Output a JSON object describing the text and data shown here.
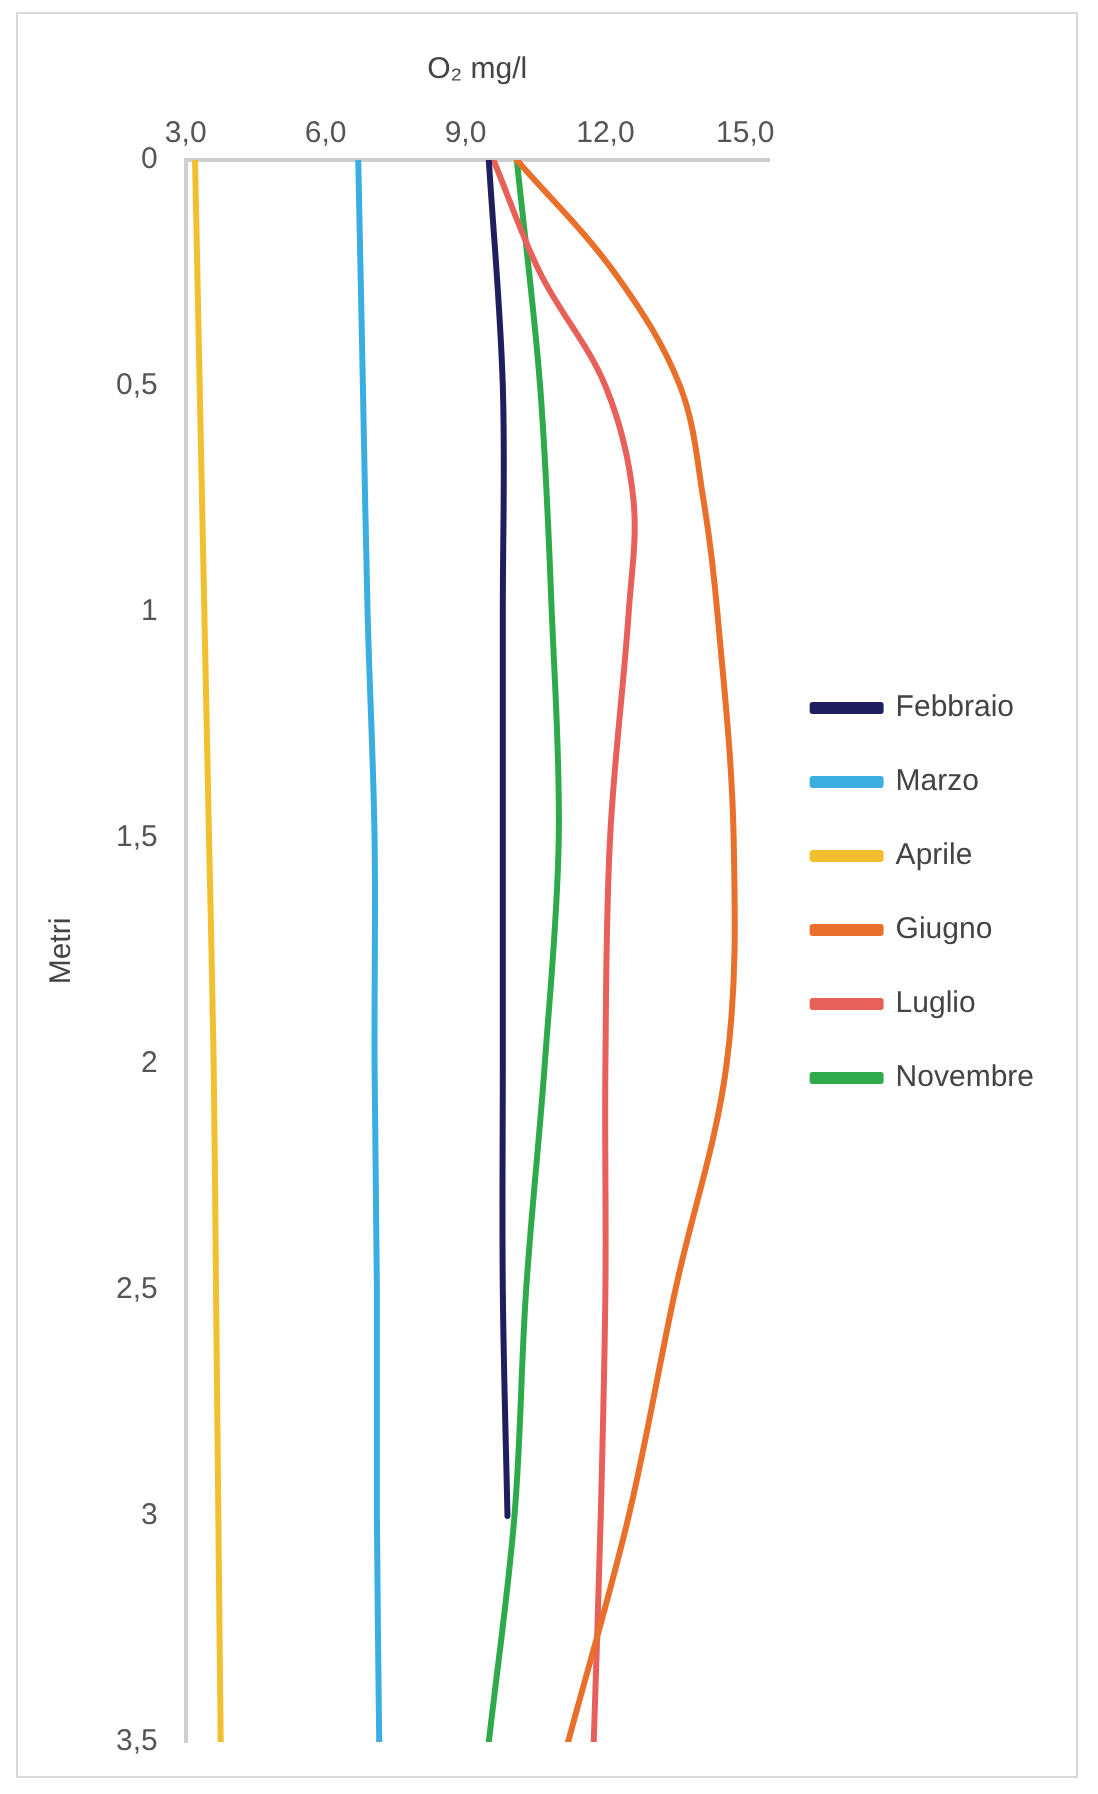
{
  "chart_data": {
    "type": "line",
    "xlabel": "O₂ mg/l",
    "ylabel": "Metri",
    "xlim": [
      3,
      15.5
    ],
    "xticks": [
      {
        "value": 3,
        "label": "3,0"
      },
      {
        "value": 6,
        "label": "6,0"
      },
      {
        "value": 9,
        "label": "9,0"
      },
      {
        "value": 12,
        "label": "12,0"
      },
      {
        "value": 15,
        "label": "15,0"
      }
    ],
    "ylim": [
      3.5,
      0
    ],
    "yticks": [
      0,
      {
        "value": 0.5,
        "label": "0,5"
      },
      1,
      {
        "value": 1.5,
        "label": "1,5"
      },
      2,
      {
        "value": 2.5,
        "label": "2,5"
      },
      3,
      {
        "value": 3.5,
        "label": "3,5"
      }
    ],
    "grid": false,
    "legend": "right",
    "marker": "none",
    "line_style": "solid",
    "series": [
      {
        "name": "Febbraio",
        "color": "#1f1f5f",
        "x": [
          9.5,
          9.8,
          9.8,
          9.8,
          9.8,
          9.8,
          9.9
        ],
        "values": [
          0,
          0.5,
          1,
          1.5,
          2,
          2.5,
          3
        ]
      },
      {
        "name": "Marzo",
        "color": "#3aaee0",
        "x": [
          6.7,
          6.8,
          6.9,
          7.05,
          7.05,
          7.1,
          7.1,
          7.15
        ],
        "values": [
          0,
          0.5,
          1,
          1.5,
          2,
          2.5,
          3,
          3.5
        ]
      },
      {
        "name": "Aprile",
        "color": "#f2c02e",
        "x": [
          3.2,
          3.3,
          3.4,
          3.5,
          3.6,
          3.65,
          3.7,
          3.75
        ],
        "values": [
          0,
          0.5,
          1,
          1.5,
          2,
          2.5,
          3,
          3.5
        ]
      },
      {
        "name": "Giugno",
        "color": "#e8702a",
        "x": [
          10.1,
          12.2,
          13.6,
          14.1,
          14.4,
          14.75,
          14.6,
          13.5,
          12.5,
          11.2
        ],
        "values": [
          0,
          0.25,
          0.5,
          0.75,
          1,
          1.5,
          2,
          2.5,
          3,
          3.5
        ]
      },
      {
        "name": "Luglio",
        "color": "#e8605a",
        "x": [
          9.6,
          10.6,
          12,
          12.6,
          12.5,
          12.1,
          12,
          12,
          11.9,
          11.75
        ],
        "values": [
          0,
          0.25,
          0.5,
          0.75,
          1,
          1.5,
          2,
          2.5,
          3,
          3.5
        ]
      },
      {
        "name": "Novembre",
        "color": "#2eaa4a",
        "x": [
          10.1,
          10.6,
          10.85,
          11,
          10.7,
          10.3,
          10.05,
          9.5
        ],
        "values": [
          0,
          0.5,
          1,
          1.5,
          2,
          2.5,
          3,
          3.5
        ]
      }
    ]
  }
}
